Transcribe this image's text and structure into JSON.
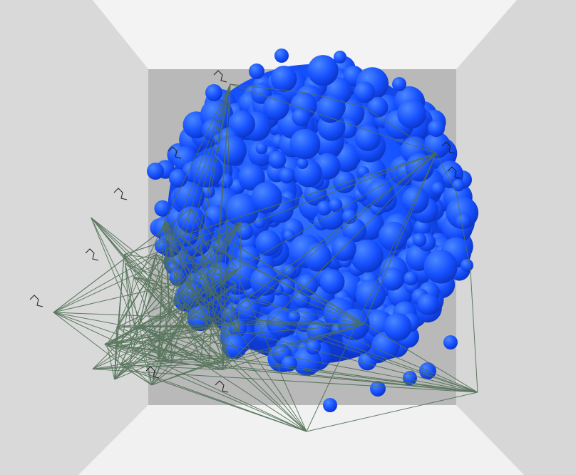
{
  "scene": {
    "subject": "molecular-surface-in-room",
    "colors": {
      "ceiling": "#f3f3f3",
      "floor": "#f1f1f1",
      "left_wall": "#d9d9d9",
      "right_wall": "#d9d9d9",
      "back_wall": "#b9b9b9",
      "blob_dark": "#0a2fbf",
      "blob_mid": "#1552ff",
      "blob_light": "#3b7bff",
      "network_lines": "#4f6f55",
      "ligand_lines": "#1e1e1e"
    }
  }
}
